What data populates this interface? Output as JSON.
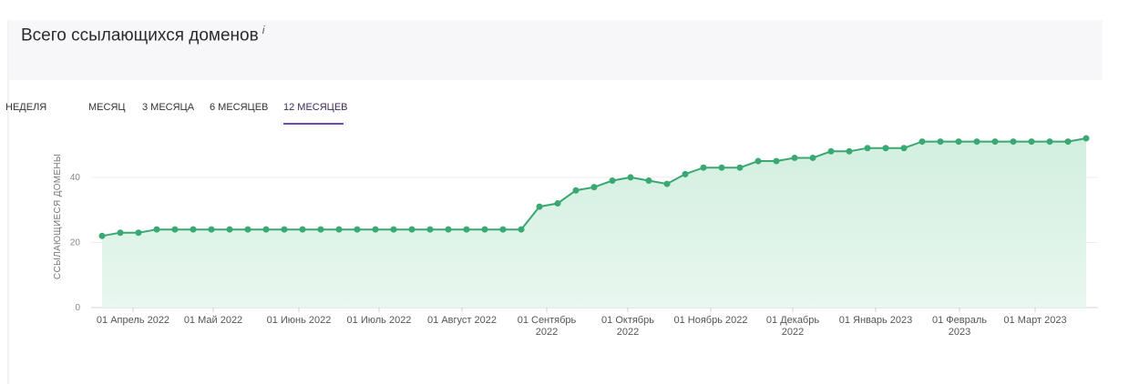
{
  "header": {
    "title": "Всего ссылающихся доменов",
    "info_marker": "i"
  },
  "tabs": [
    {
      "label": "НЕДЕЛЯ",
      "active": false
    },
    {
      "label": "МЕСЯЦ",
      "active": false
    },
    {
      "label": "3 МЕСЯЦА",
      "active": false
    },
    {
      "label": "6 МЕСЯЦЕВ",
      "active": false
    },
    {
      "label": "12 МЕСЯЦЕВ",
      "active": true
    }
  ],
  "colors": {
    "line": "#3aa872",
    "marker": "#3aa872",
    "area": "#d9f1e4",
    "tab_underline": "#6c4bb6"
  },
  "chart_data": {
    "type": "area",
    "ylabel": "ССЫЛАЮЩИЕСЯ ДОМЕНЫ",
    "xlabel": "",
    "ylim": [
      0,
      52
    ],
    "yticks": [
      0,
      20,
      40
    ],
    "grid": "horizontal",
    "x_tick_labels": [
      "01 Апрель 2022",
      "01 Май 2022",
      "01 Июнь 2022",
      "01 Июль 2022",
      "01 Август 2022",
      "01 Сентябрь 2022",
      "01 Октябрь 2022",
      "01 Ноябрь 2022",
      "01 Декабрь 2022",
      "01 Январь 2023",
      "01 Февраль 2023",
      "01 Март 2023"
    ],
    "x_tick_lines": [
      [
        "01 Апрель 2022"
      ],
      [
        "01 Май 2022"
      ],
      [
        "01 Июнь 2022"
      ],
      [
        "01 Июль 2022"
      ],
      [
        "01 Август 2022"
      ],
      [
        "01 Сентябрь",
        "2022"
      ],
      [
        "01 Октябрь",
        "2022"
      ],
      [
        "01 Ноябрь 2022"
      ],
      [
        "01 Декабрь",
        "2022"
      ],
      [
        "01 Январь 2023"
      ],
      [
        "01 Февраль",
        "2023"
      ],
      [
        "01 Март 2023"
      ]
    ],
    "series": [
      {
        "values": [
          22,
          23,
          23,
          24,
          24,
          24,
          24,
          24,
          24,
          24,
          24,
          24,
          24,
          24,
          24,
          24,
          24,
          24,
          24,
          24,
          24,
          24,
          24,
          24,
          31,
          32,
          36,
          37,
          39,
          40,
          39,
          38,
          41,
          43,
          43,
          43,
          45,
          45,
          46,
          46,
          48,
          48,
          49,
          49,
          49,
          51,
          51,
          51,
          51,
          51,
          51,
          51,
          51,
          51,
          52
        ]
      }
    ]
  }
}
